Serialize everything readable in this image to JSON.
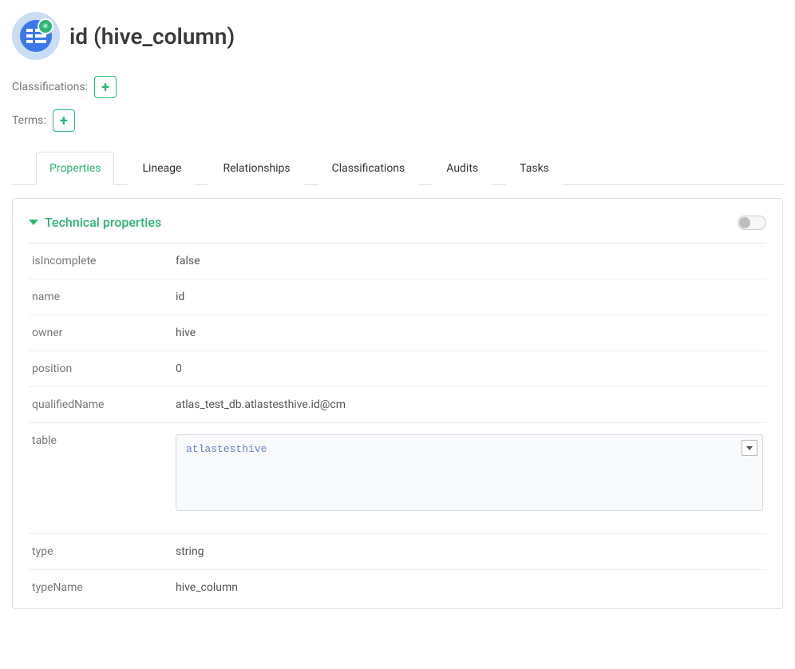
{
  "colors": {
    "accent_green": "#2bb673",
    "icon_blue": "#3b78e7",
    "icon_bg": "#c9ddf5",
    "border": "#e0e0e0",
    "text_muted": "#777"
  },
  "header": {
    "title": "id (hive_column)"
  },
  "tagRows": {
    "classifications_label": "Classifications:",
    "terms_label": "Terms:"
  },
  "tabs": [
    {
      "id": "properties",
      "label": "Properties",
      "active": true
    },
    {
      "id": "lineage",
      "label": "Lineage",
      "active": false
    },
    {
      "id": "relationships",
      "label": "Relationships",
      "active": false
    },
    {
      "id": "classifications",
      "label": "Classifications",
      "active": false
    },
    {
      "id": "audits",
      "label": "Audits",
      "active": false
    },
    {
      "id": "tasks",
      "label": "Tasks",
      "active": false
    }
  ],
  "section": {
    "title": "Technical properties",
    "toggle_on": false
  },
  "properties": {
    "isIncomplete": {
      "key": "isIncomplete",
      "value": "false"
    },
    "name": {
      "key": "name",
      "value": "id"
    },
    "owner": {
      "key": "owner",
      "value": "hive"
    },
    "position": {
      "key": "position",
      "value": "0"
    },
    "qualifiedName": {
      "key": "qualifiedName",
      "value": "atlas_test_db.atlastesthive.id@cm"
    },
    "table": {
      "key": "table",
      "link_value": "atlastesthive"
    },
    "type": {
      "key": "type",
      "value": "string"
    },
    "typeName": {
      "key": "typeName",
      "value": "hive_column"
    }
  }
}
